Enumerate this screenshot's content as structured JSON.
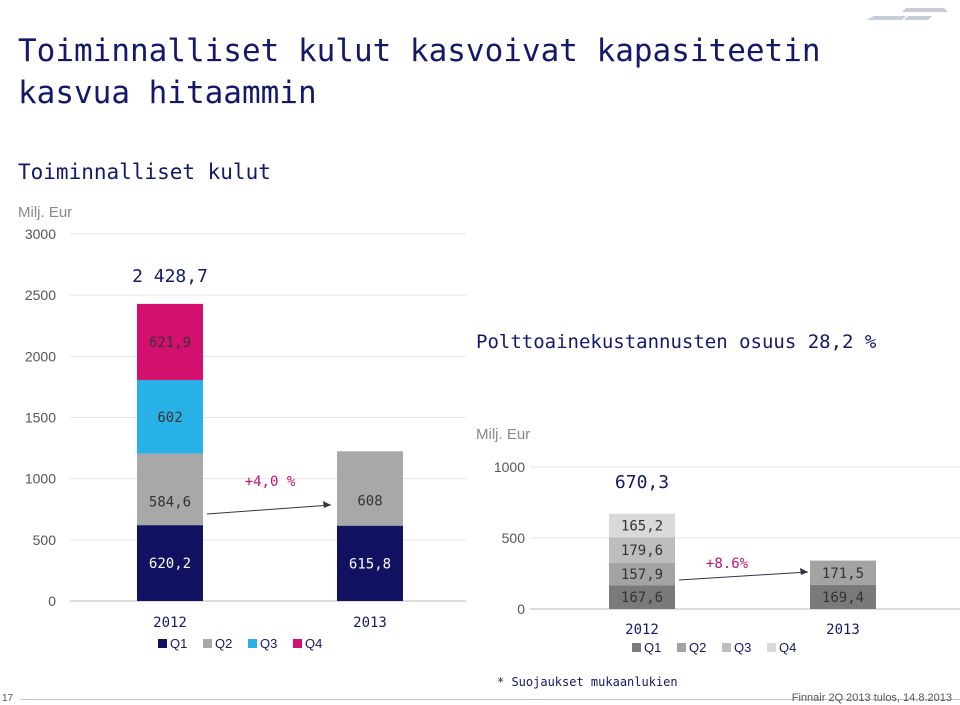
{
  "title": "Toiminnalliset kulut kasvoivat kapasiteetin kasvua hitaammin",
  "subtitle": "Toiminnalliset kulut",
  "fuel_share": "Polttoainekustannusten osuus 28,2 %",
  "footnote": "* Suojaukset mukaanlukien",
  "page_number": "17",
  "footer": "Finnair 2Q 2013 tulos, 14.8.2013",
  "colors": {
    "Q1": "#131262",
    "Q2": "#a8a8a8",
    "Q3": "#27b1e6",
    "Q4": "#d4106f",
    "fuel_Q1": "#7a7a7a",
    "fuel_Q2": "#a3a3a3",
    "fuel_Q3": "#bdbdbd",
    "fuel_Q4": "#d9d9d9",
    "growth": "#c0136f",
    "text": "#14186b"
  },
  "chart_data": [
    {
      "type": "bar",
      "stacked": true,
      "unit": "Milj. Eur",
      "categories": [
        "2012",
        "2013"
      ],
      "series": [
        {
          "name": "Q1",
          "values": [
            620.2,
            615.8
          ],
          "labels": [
            "620,2",
            "615,8"
          ]
        },
        {
          "name": "Q2",
          "values": [
            584.6,
            608.0
          ],
          "labels": [
            "584,6",
            "608"
          ]
        },
        {
          "name": "Q3",
          "values": [
            602.0,
            null
          ],
          "labels": [
            "602",
            ""
          ]
        },
        {
          "name": "Q4",
          "values": [
            621.9,
            null
          ],
          "labels": [
            "621,9",
            ""
          ]
        }
      ],
      "totals": [
        "2 428,7",
        ""
      ],
      "growth_label": "+4,0 %",
      "ylim": [
        0,
        3000
      ],
      "yticks": [
        "0",
        "500",
        "1000",
        "1500",
        "2000",
        "2500",
        "3000"
      ],
      "grid": true,
      "legend_position": "bottom"
    },
    {
      "type": "bar",
      "stacked": true,
      "unit": "Milj. Eur",
      "categories": [
        "2012",
        "2013"
      ],
      "series": [
        {
          "name": "Q1",
          "values": [
            167.6,
            169.4
          ],
          "labels": [
            "167,6",
            "169,4"
          ]
        },
        {
          "name": "Q2",
          "values": [
            157.9,
            171.5
          ],
          "labels": [
            "157,9",
            "171,5"
          ]
        },
        {
          "name": "Q3",
          "values": [
            179.6,
            null
          ],
          "labels": [
            "179,6",
            ""
          ]
        },
        {
          "name": "Q4",
          "values": [
            165.2,
            null
          ],
          "labels": [
            "165,2",
            ""
          ]
        }
      ],
      "totals": [
        "670,3",
        ""
      ],
      "growth_label": "+8.6%",
      "ylim": [
        0,
        1000
      ],
      "yticks": [
        "0",
        "500",
        "1000"
      ],
      "grid": true,
      "legend_position": "bottom"
    }
  ]
}
